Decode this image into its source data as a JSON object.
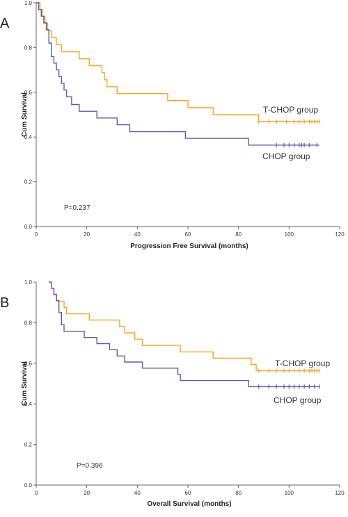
{
  "chart_data": [
    {
      "type": "line",
      "panel": "A",
      "xlabel": "Progression Free Survival (months)",
      "ylabel": "Cum Survival",
      "xlim": [
        0,
        120
      ],
      "ylim": [
        0,
        1
      ],
      "xticks": [
        "0",
        "20",
        "40",
        "60",
        "80",
        "100",
        "120"
      ],
      "yticks": [
        "0.0",
        "0.2",
        "0.4",
        "0.6",
        "0.8",
        "1.0"
      ],
      "annotation": "P=0.237",
      "series": [
        {
          "name": "T-CHOP group",
          "color": "#F5A623",
          "steps": [
            [
              0,
              1.0
            ],
            [
              1.5,
              0.97
            ],
            [
              2.5,
              0.94
            ],
            [
              3.5,
              0.91
            ],
            [
              4.5,
              0.875
            ],
            [
              6,
              0.844
            ],
            [
              8,
              0.813
            ],
            [
              10,
              0.781
            ],
            [
              17,
              0.75
            ],
            [
              21,
              0.719
            ],
            [
              26,
              0.688
            ],
            [
              27,
              0.656
            ],
            [
              28,
              0.625
            ],
            [
              32,
              0.594
            ],
            [
              52,
              0.563
            ],
            [
              60,
              0.531
            ],
            [
              70,
              0.5
            ],
            [
              88,
              0.469
            ],
            [
              112,
              0.469
            ]
          ],
          "censored_x": [
            88,
            92,
            95,
            99,
            102,
            104,
            106,
            108,
            109,
            110,
            111,
            112
          ]
        },
        {
          "name": "CHOP group",
          "color": "#5B5BAE",
          "steps": [
            [
              0,
              1.0
            ],
            [
              1,
              0.97
            ],
            [
              2,
              0.94
            ],
            [
              3,
              0.91
            ],
            [
              4,
              0.88
            ],
            [
              5,
              0.82
            ],
            [
              6,
              0.76
            ],
            [
              7,
              0.73
            ],
            [
              8,
              0.7
            ],
            [
              9,
              0.67
            ],
            [
              10,
              0.64
            ],
            [
              11,
              0.61
            ],
            [
              12,
              0.58
            ],
            [
              14,
              0.545
            ],
            [
              17,
              0.515
            ],
            [
              24,
              0.485
            ],
            [
              32,
              0.455
            ],
            [
              37,
              0.424
            ],
            [
              59,
              0.394
            ],
            [
              84,
              0.364
            ],
            [
              112,
              0.364
            ]
          ],
          "censored_x": [
            95,
            98,
            100,
            102,
            104,
            105,
            106,
            108,
            111
          ]
        }
      ]
    },
    {
      "type": "line",
      "panel": "B",
      "xlabel": "Overall Survival (months)",
      "ylabel": "Cum Survival",
      "xlim": [
        0,
        120
      ],
      "ylim": [
        0,
        1
      ],
      "xticks": [
        "0",
        "20",
        "40",
        "60",
        "80",
        "100",
        "120"
      ],
      "yticks": [
        "0.0",
        "0.2",
        "0.4",
        "0.6",
        "0.8",
        "1.0"
      ],
      "annotation": "P=0.396",
      "series": [
        {
          "name": "T-CHOP group",
          "color": "#F5A623",
          "steps": [
            [
              5,
              1.0
            ],
            [
              6,
              0.969
            ],
            [
              7,
              0.938
            ],
            [
              8,
              0.906
            ],
            [
              11,
              0.875
            ],
            [
              12,
              0.844
            ],
            [
              21,
              0.813
            ],
            [
              33,
              0.781
            ],
            [
              35,
              0.75
            ],
            [
              39,
              0.719
            ],
            [
              42,
              0.688
            ],
            [
              57,
              0.656
            ],
            [
              70,
              0.625
            ],
            [
              85,
              0.594
            ],
            [
              87,
              0.563
            ],
            [
              112,
              0.563
            ]
          ],
          "censored_x": [
            88,
            92,
            95,
            98,
            100,
            102,
            104,
            106,
            108,
            109,
            110,
            111,
            112
          ]
        },
        {
          "name": "CHOP group",
          "color": "#5B5BAE",
          "steps": [
            [
              5,
              1.0
            ],
            [
              6,
              0.97
            ],
            [
              7,
              0.94
            ],
            [
              8,
              0.91
            ],
            [
              9,
              0.85
            ],
            [
              10,
              0.79
            ],
            [
              11,
              0.758
            ],
            [
              19,
              0.727
            ],
            [
              24,
              0.697
            ],
            [
              29,
              0.667
            ],
            [
              32,
              0.636
            ],
            [
              35,
              0.606
            ],
            [
              42,
              0.576
            ],
            [
              56,
              0.545
            ],
            [
              57,
              0.515
            ],
            [
              84,
              0.485
            ],
            [
              112,
              0.485
            ]
          ],
          "censored_x": [
            88,
            92,
            95,
            98,
            100,
            102,
            104,
            106,
            108,
            110,
            112
          ]
        }
      ]
    }
  ]
}
